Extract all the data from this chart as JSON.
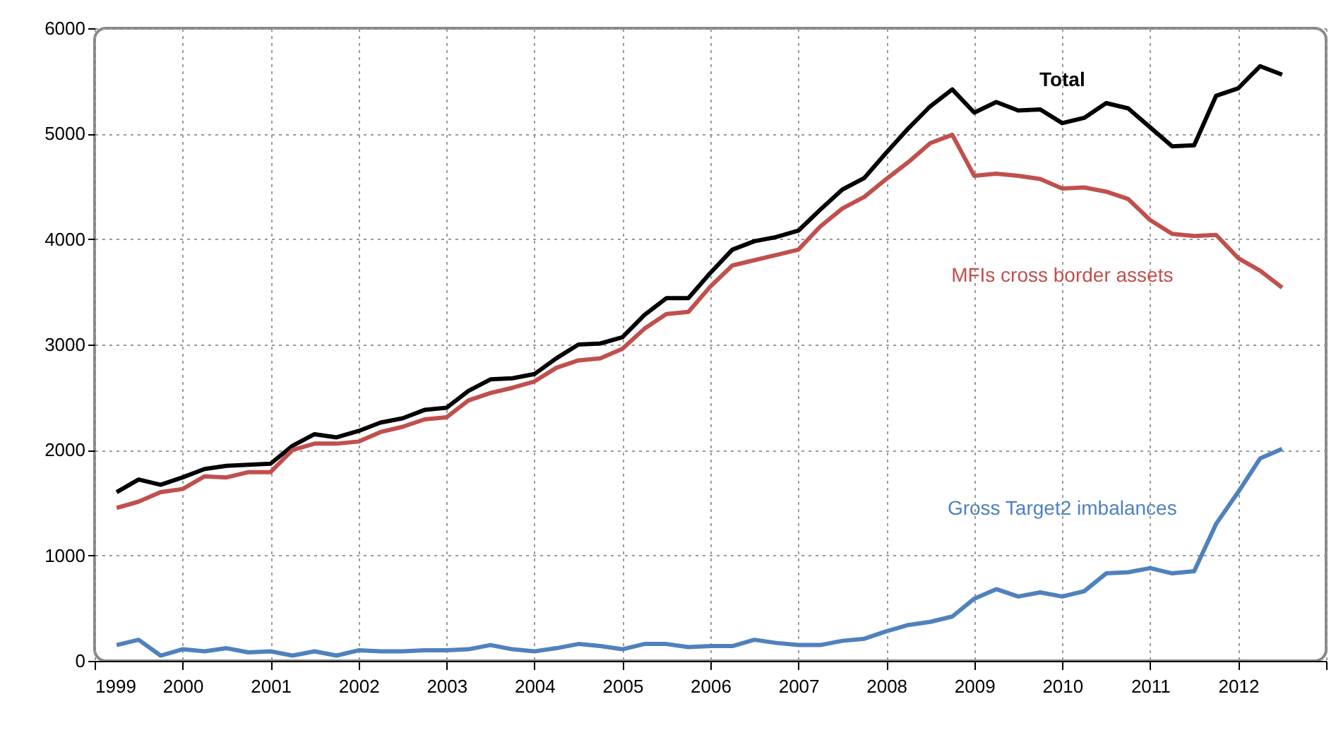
{
  "chart_data": {
    "type": "line",
    "x": [
      1999.25,
      1999.5,
      1999.75,
      2000,
      2000.25,
      2000.5,
      2000.75,
      2001,
      2001.25,
      2001.5,
      2001.75,
      2002,
      2002.25,
      2002.5,
      2002.75,
      2003,
      2003.25,
      2003.5,
      2003.75,
      2004,
      2004.25,
      2004.5,
      2004.75,
      2005,
      2005.25,
      2005.5,
      2005.75,
      2006,
      2006.25,
      2006.5,
      2006.75,
      2007,
      2007.25,
      2007.5,
      2007.75,
      2008,
      2008.25,
      2008.5,
      2008.75,
      2009,
      2009.25,
      2009.5,
      2009.75,
      2010,
      2010.25,
      2010.5,
      2010.75,
      2011,
      2011.25,
      2011.5,
      2011.75,
      2012,
      2012.25,
      2012.5
    ],
    "series": [
      {
        "name": "Total",
        "color": "#000000",
        "values": [
          1600,
          1720,
          1670,
          1740,
          1820,
          1850,
          1860,
          1870,
          2040,
          2150,
          2120,
          2180,
          2260,
          2300,
          2380,
          2400,
          2560,
          2670,
          2680,
          2720,
          2870,
          3000,
          3010,
          3070,
          3280,
          3440,
          3440,
          3680,
          3900,
          3980,
          4020,
          4080,
          4280,
          4470,
          4580,
          4820,
          5050,
          5260,
          5420,
          5200,
          5300,
          5220,
          5230,
          5100,
          5150,
          5290,
          5240,
          5060,
          4880,
          4890,
          5360,
          5430,
          5640,
          5560
        ]
      },
      {
        "name": "MFIs cross border assets",
        "color": "#c0504d",
        "values": [
          1450,
          1510,
          1600,
          1630,
          1750,
          1740,
          1790,
          1790,
          2000,
          2060,
          2060,
          2080,
          2170,
          2220,
          2290,
          2310,
          2470,
          2540,
          2590,
          2650,
          2780,
          2850,
          2870,
          2960,
          3150,
          3290,
          3310,
          3550,
          3750,
          3800,
          3850,
          3900,
          4120,
          4290,
          4400,
          4570,
          4730,
          4910,
          4990,
          4600,
          4620,
          4600,
          4570,
          4480,
          4490,
          4450,
          4380,
          4180,
          4050,
          4030,
          4040,
          3820,
          3700,
          3540
        ]
      },
      {
        "name": "Gross Target2 imbalances",
        "color": "#4f81bd",
        "values": [
          150,
          200,
          50,
          110,
          90,
          120,
          80,
          90,
          50,
          90,
          50,
          100,
          90,
          90,
          100,
          100,
          110,
          150,
          110,
          90,
          120,
          160,
          140,
          110,
          160,
          160,
          130,
          140,
          140,
          200,
          170,
          150,
          150,
          190,
          210,
          280,
          340,
          370,
          420,
          590,
          680,
          610,
          650,
          610,
          660,
          830,
          840,
          880,
          830,
          850,
          1300,
          1600,
          1920,
          2010
        ]
      }
    ],
    "xlim": [
      1999,
      2013
    ],
    "xticks": [
      1999,
      2000,
      2001,
      2002,
      2003,
      2004,
      2005,
      2006,
      2007,
      2008,
      2009,
      2010,
      2011,
      2012,
      {
        "value": 2013,
        "label": null
      }
    ],
    "ylim": [
      0,
      6000
    ],
    "yticks": [
      0,
      1000,
      2000,
      3000,
      4000,
      5000,
      6000
    ],
    "grid": true,
    "legend": false,
    "marker": "none",
    "line_style": "solid"
  }
}
